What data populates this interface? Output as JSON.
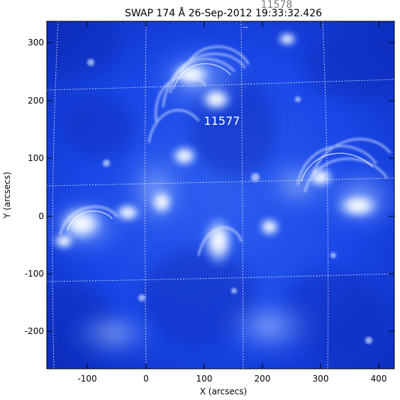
{
  "title": "SWAP 174 Å 26-Sep-2012 19:33:32.426",
  "partial_overlap_text": "11578",
  "region_label": "11577",
  "axes": {
    "x_label": "X (arcsecs)",
    "y_label": "Y (arcsecs)",
    "x_ticks": [
      "-100",
      "0",
      "100",
      "200",
      "300",
      "400"
    ],
    "y_ticks": [
      "300",
      "200",
      "100",
      "0",
      "-100",
      "-200"
    ]
  },
  "colors": {
    "image_background": "#0a2fcc",
    "image_bright": "#ffffff",
    "grid": "#ffffff",
    "axis": "#000000"
  },
  "icons": []
}
